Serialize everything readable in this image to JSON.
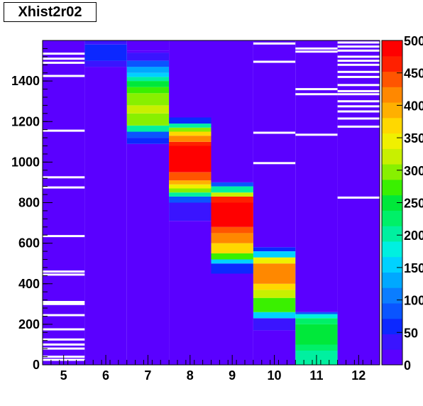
{
  "chart_data": {
    "type": "heatmap",
    "title": "Xhist2r02",
    "xlabel": "",
    "ylabel": "",
    "x_tick_labels": [
      "5",
      "6",
      "7",
      "8",
      "9",
      "10",
      "11",
      "12"
    ],
    "y_tick_labels": [
      "0",
      "200",
      "400",
      "600",
      "800",
      "1000",
      "1200",
      "1400"
    ],
    "colorbar_tick_labels": [
      "0",
      "50",
      "100",
      "150",
      "200",
      "250",
      "300",
      "350",
      "400",
      "450",
      "500"
    ],
    "xlim": [
      4.5,
      12.5
    ],
    "ylim": [
      0,
      1600
    ],
    "zlim": [
      0,
      500
    ],
    "grid": false,
    "legend": "colorbar-right",
    "empty_bin_color": "#ffffff",
    "palette": [
      "#5a00ff",
      "#3a14ff",
      "#0c28ff",
      "#0a55ff",
      "#0a7dff",
      "#00a8ff",
      "#00d2ff",
      "#00f0e0",
      "#00f0a0",
      "#00f068",
      "#00e83a",
      "#3af000",
      "#88f000",
      "#c8f000",
      "#f0f000",
      "#ffd800",
      "#ffb000",
      "#ff8800",
      "#ff5500",
      "#ff2000",
      "#ff0000"
    ],
    "columns": [
      {
        "x": 5,
        "segments": [
          {
            "y0": 0,
            "y1": 1600,
            "z": 10
          }
        ],
        "empty_y": [
          25,
          40,
          80,
          100,
          125,
          175,
          245,
          300,
          310,
          445,
          460,
          635,
          875,
          925,
          1155,
          1425,
          1490,
          1510,
          1535
        ]
      },
      {
        "x": 6,
        "segments": [
          {
            "y0": 0,
            "y1": 1470,
            "z": 10
          },
          {
            "y0": 1470,
            "y1": 1500,
            "z": 25
          },
          {
            "y0": 1500,
            "y1": 1580,
            "z": 55
          },
          {
            "y0": 1580,
            "y1": 1600,
            "z": 40
          }
        ],
        "empty_y": []
      },
      {
        "x": 7,
        "segments": [
          {
            "y0": 0,
            "y1": 1075,
            "z": 10
          },
          {
            "y0": 1075,
            "y1": 1090,
            "z": 20
          },
          {
            "y0": 1090,
            "y1": 1120,
            "z": 50
          },
          {
            "y0": 1120,
            "y1": 1150,
            "z": 80
          },
          {
            "y0": 1150,
            "y1": 1180,
            "z": 200
          },
          {
            "y0": 1180,
            "y1": 1240,
            "z": 290
          },
          {
            "y0": 1240,
            "y1": 1280,
            "z": 310
          },
          {
            "y0": 1280,
            "y1": 1340,
            "z": 300
          },
          {
            "y0": 1340,
            "y1": 1370,
            "z": 280
          },
          {
            "y0": 1370,
            "y1": 1400,
            "z": 250
          },
          {
            "y0": 1400,
            "y1": 1420,
            "z": 200
          },
          {
            "y0": 1420,
            "y1": 1440,
            "z": 160
          },
          {
            "y0": 1440,
            "y1": 1470,
            "z": 120
          },
          {
            "y0": 1470,
            "y1": 1500,
            "z": 80
          },
          {
            "y0": 1500,
            "y1": 1540,
            "z": 40
          },
          {
            "y0": 1540,
            "y1": 1550,
            "z": 20
          },
          {
            "y0": 1550,
            "y1": 1600,
            "z": 10
          }
        ],
        "empty_y": []
      },
      {
        "x": 8,
        "segments": [
          {
            "y0": 0,
            "y1": 710,
            "z": 10
          },
          {
            "y0": 710,
            "y1": 800,
            "z": 40
          },
          {
            "y0": 800,
            "y1": 830,
            "z": 80
          },
          {
            "y0": 830,
            "y1": 850,
            "z": 200
          },
          {
            "y0": 850,
            "y1": 870,
            "z": 300
          },
          {
            "y0": 870,
            "y1": 890,
            "z": 350
          },
          {
            "y0": 890,
            "y1": 910,
            "z": 400
          },
          {
            "y0": 910,
            "y1": 950,
            "z": 450
          },
          {
            "y0": 950,
            "y1": 1080,
            "z": 500
          },
          {
            "y0": 1080,
            "y1": 1100,
            "z": 460
          },
          {
            "y0": 1100,
            "y1": 1130,
            "z": 420
          },
          {
            "y0": 1130,
            "y1": 1150,
            "z": 380
          },
          {
            "y0": 1150,
            "y1": 1170,
            "z": 300
          },
          {
            "y0": 1170,
            "y1": 1190,
            "z": 200
          },
          {
            "y0": 1190,
            "y1": 1220,
            "z": 60
          },
          {
            "y0": 1220,
            "y1": 1600,
            "z": 10
          }
        ],
        "empty_y": []
      },
      {
        "x": 9,
        "segments": [
          {
            "y0": 0,
            "y1": 450,
            "z": 10
          },
          {
            "y0": 450,
            "y1": 500,
            "z": 50
          },
          {
            "y0": 500,
            "y1": 520,
            "z": 150
          },
          {
            "y0": 520,
            "y1": 550,
            "z": 280
          },
          {
            "y0": 550,
            "y1": 600,
            "z": 370
          },
          {
            "y0": 600,
            "y1": 650,
            "z": 410
          },
          {
            "y0": 650,
            "y1": 680,
            "z": 450
          },
          {
            "y0": 680,
            "y1": 800,
            "z": 500
          },
          {
            "y0": 800,
            "y1": 830,
            "z": 460
          },
          {
            "y0": 830,
            "y1": 850,
            "z": 330
          },
          {
            "y0": 850,
            "y1": 880,
            "z": 200
          },
          {
            "y0": 880,
            "y1": 900,
            "z": 80
          },
          {
            "y0": 900,
            "y1": 1600,
            "z": 10
          }
        ],
        "empty_y": []
      },
      {
        "x": 10,
        "segments": [
          {
            "y0": 0,
            "y1": 170,
            "z": 10
          },
          {
            "y0": 170,
            "y1": 230,
            "z": 40
          },
          {
            "y0": 230,
            "y1": 260,
            "z": 160
          },
          {
            "y0": 260,
            "y1": 330,
            "z": 280
          },
          {
            "y0": 330,
            "y1": 370,
            "z": 330
          },
          {
            "y0": 370,
            "y1": 400,
            "z": 380
          },
          {
            "y0": 400,
            "y1": 500,
            "z": 420
          },
          {
            "y0": 500,
            "y1": 530,
            "z": 350
          },
          {
            "y0": 530,
            "y1": 560,
            "z": 150
          },
          {
            "y0": 560,
            "y1": 580,
            "z": 50
          },
          {
            "y0": 580,
            "y1": 1600,
            "z": 10
          }
        ],
        "empty_y": [
          995,
          1145,
          1495,
          1585
        ]
      },
      {
        "x": 11,
        "segments": [
          {
            "y0": 0,
            "y1": 70,
            "z": 200
          },
          {
            "y0": 70,
            "y1": 100,
            "z": 220
          },
          {
            "y0": 100,
            "y1": 200,
            "z": 250
          },
          {
            "y0": 200,
            "y1": 230,
            "z": 220
          },
          {
            "y0": 230,
            "y1": 250,
            "z": 170
          },
          {
            "y0": 250,
            "y1": 260,
            "z": 80
          },
          {
            "y0": 260,
            "y1": 1600,
            "z": 10
          }
        ],
        "empty_y": [
          1135,
          1335,
          1360,
          1545,
          1560
        ]
      },
      {
        "x": 12,
        "segments": [
          {
            "y0": 0,
            "y1": 1600,
            "z": 10
          }
        ],
        "empty_y": [
          825,
          1175,
          1215,
          1250,
          1275,
          1300,
          1335,
          1350,
          1380,
          1420,
          1445,
          1480,
          1500,
          1520,
          1550,
          1570,
          1590
        ]
      }
    ]
  }
}
